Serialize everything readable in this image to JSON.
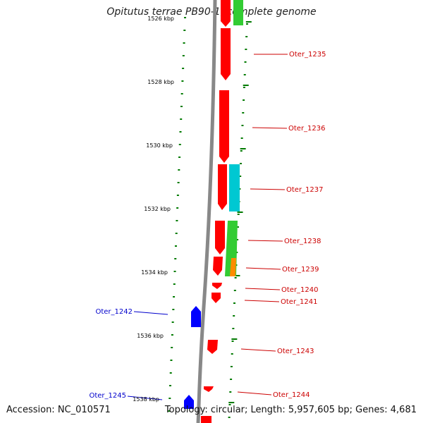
{
  "title": "Opitutus terrae PB90-1, complete genome",
  "accession_text": "Accession: NC_010571",
  "topology_text": "Topology: circular; Length: 5,957,605 bp; Genes: 4,681",
  "colors": {
    "forward_gene": "#ff0000",
    "reverse_gene": "#0000ff",
    "feature_green": "#33cc33",
    "feature_cyan": "#00c8d2",
    "feature_orange": "#ff8c00",
    "tick": "#007a00",
    "axis": "#888888",
    "label_forward": "#cc0000",
    "label_reverse": "#0000cc"
  },
  "scale_labels": [
    "1526 kbp",
    "1528 kbp",
    "1530 kbp",
    "1532 kbp",
    "1534 kbp",
    "1536 kbp",
    "1538 kbp"
  ],
  "gene_labels_right": [
    "Oter_1235",
    "Oter_1236",
    "Oter_1237",
    "Oter_1238",
    "Oter_1239",
    "Oter_1240",
    "Oter_1241",
    "Oter_1243",
    "Oter_1244"
  ],
  "gene_labels_left": [
    "Oter_1242",
    "Oter_1245"
  ]
}
